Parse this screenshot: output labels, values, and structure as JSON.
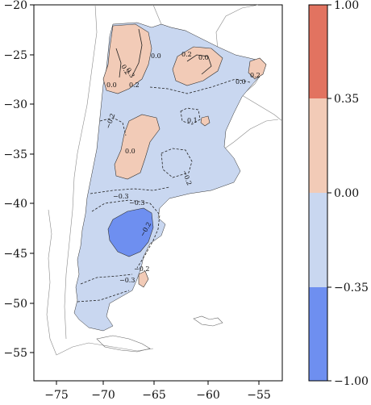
{
  "map": {
    "x_ticks": [
      "−75",
      "−70",
      "−65",
      "−60",
      "−55"
    ],
    "y_ticks": [
      "−20",
      "−25",
      "−30",
      "−35",
      "−40",
      "−45",
      "−50",
      "−55"
    ],
    "lon_range": [
      -77,
      -52
    ],
    "lat_range": [
      -58,
      -20
    ]
  },
  "colorbar": {
    "labels": [
      "1.00",
      "0.35",
      "0.00",
      "−0.35",
      "−1.00"
    ],
    "bins": [
      {
        "range": "0.35 to 1.00",
        "color": "#e27360"
      },
      {
        "range": "0.00 to 0.35",
        "color": "#f2cbb7"
      },
      {
        "range": "−0.35 to 0.00",
        "color": "#c9d7f0"
      },
      {
        "range": "−1.00 to −0.35",
        "color": "#6e8ff0"
      }
    ]
  },
  "contour_labels": [
    "0.0",
    "0.2",
    "0.3",
    "0.0",
    "0.2",
    "0.2",
    "0.0",
    "0.2",
    "0.0",
    "−0.2",
    "0.1",
    "0.0",
    "−0.2",
    "−0.3",
    "−0.3",
    "−0.2",
    "−0.3",
    "−0.2"
  ]
}
